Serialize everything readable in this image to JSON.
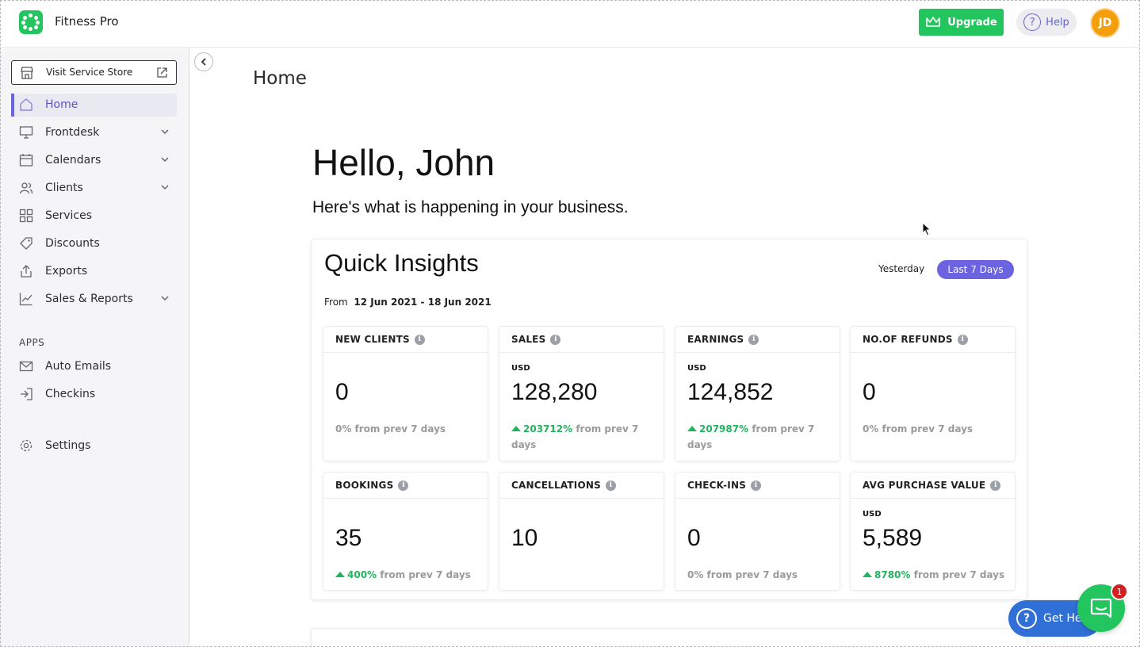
{
  "app": {
    "name": "Fitness Pro"
  },
  "header": {
    "upgrade_label": "Upgrade",
    "help_label": "Help",
    "avatar_initials": "JD"
  },
  "sidebar": {
    "visit_store_label": "Visit Service Store",
    "items": [
      {
        "label": "Home",
        "icon": "home-icon",
        "active": true
      },
      {
        "label": "Frontdesk",
        "icon": "monitor-icon",
        "expandable": true
      },
      {
        "label": "Calendars",
        "icon": "calendar-icon",
        "expandable": true
      },
      {
        "label": "Clients",
        "icon": "users-icon",
        "expandable": true
      },
      {
        "label": "Services",
        "icon": "grid-icon"
      },
      {
        "label": "Discounts",
        "icon": "tag-icon"
      },
      {
        "label": "Exports",
        "icon": "upload-icon"
      },
      {
        "label": "Sales & Reports",
        "icon": "chart-icon",
        "expandable": true
      }
    ],
    "apps_section_label": "APPS",
    "apps": [
      {
        "label": "Auto Emails",
        "icon": "mail-icon"
      },
      {
        "label": "Checkins",
        "icon": "sign-in-icon"
      }
    ],
    "settings_label": "Settings"
  },
  "main": {
    "page_title": "Home",
    "greeting": "Hello, John",
    "subgreeting": "Here's what is happening in your business."
  },
  "insights": {
    "title": "Quick Insights",
    "range_options": [
      "Yesterday",
      "Last 7 Days"
    ],
    "selected_range": "Last 7 Days",
    "from_label": "From",
    "date_range": "12 Jun 2021 - 18 Jun 2021",
    "stats": [
      {
        "label": "NEW CLIENTS",
        "currency": "",
        "value": "0",
        "change": "",
        "change_text": "0% from prev 7 days",
        "trend": "flat"
      },
      {
        "label": "SALES",
        "currency": "USD",
        "value": "128,280",
        "change": "203712%",
        "change_text": "from prev 7 days",
        "trend": "up"
      },
      {
        "label": "EARNINGS",
        "currency": "USD",
        "value": "124,852",
        "change": "207987%",
        "change_text": "from prev 7 days",
        "trend": "up"
      },
      {
        "label": "NO.OF REFUNDS",
        "currency": "",
        "value": "0",
        "change": "",
        "change_text": "0% from prev 7 days",
        "trend": "flat"
      },
      {
        "label": "BOOKINGS",
        "currency": "",
        "value": "35",
        "change": "400%",
        "change_text": "from prev 7 days",
        "trend": "up"
      },
      {
        "label": "CANCELLATIONS",
        "currency": "",
        "value": "10",
        "change": "",
        "change_text": "",
        "trend": "none"
      },
      {
        "label": "CHECK-INS",
        "currency": "",
        "value": "0",
        "change": "",
        "change_text": "0% from prev 7 days",
        "trend": "flat"
      },
      {
        "label": "AVG PURCHASE VALUE",
        "currency": "USD",
        "value": "5,589",
        "change": "8780%",
        "change_text": "from prev 7 days",
        "trend": "up"
      }
    ]
  },
  "widgets": {
    "get_help_label": "Get Help",
    "chat_badge_count": "1"
  },
  "colors": {
    "brand_green": "#22c55e",
    "accent_purple": "#6c63e0",
    "up_green": "#22b35e",
    "help_blue": "#2f6fd6"
  }
}
